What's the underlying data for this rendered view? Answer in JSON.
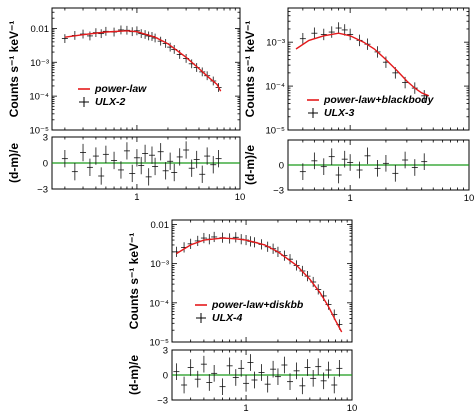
{
  "chart_data": [
    {
      "type": "scatter",
      "name_hint": "ulx2",
      "ylabel": "Counts s⁻¹ keV⁻¹",
      "resid_ylabel": "(d-m)/e",
      "xlim": [
        0.15,
        10
      ],
      "ylim": [
        1e-05,
        0.04
      ],
      "resid_ylim": [
        -3,
        3
      ],
      "xscale": "log",
      "yscale": "log",
      "x_ticks": [
        {
          "v": 1,
          "label": "1"
        },
        {
          "v": 10,
          "label": "10"
        }
      ],
      "y_ticks": [
        {
          "v": 0.01,
          "label": "0.01"
        },
        {
          "v": 0.001,
          "label": "10⁻³"
        },
        {
          "v": 0.0001,
          "label": "10⁻⁴"
        },
        {
          "v": 1e-05,
          "label": "10⁻⁵"
        }
      ],
      "resid_ticks": [
        {
          "v": 3,
          "label": "3"
        },
        {
          "v": 0,
          "label": "0"
        },
        {
          "v": -3,
          "label": "−3"
        }
      ],
      "legend": [
        {
          "label": "power-law",
          "style": "line",
          "color": "#e41a1c"
        },
        {
          "label": "ULX-2",
          "style": "cross",
          "color": "#000000"
        }
      ],
      "model": {
        "x": [
          0.2,
          0.3,
          0.5,
          0.8,
          1.0,
          1.5,
          2.0,
          3.0,
          4.0,
          5.0,
          6.0,
          6.5
        ],
        "y": [
          0.0055,
          0.0065,
          0.0078,
          0.0085,
          0.008,
          0.0055,
          0.0035,
          0.0014,
          0.00065,
          0.00035,
          0.00022,
          0.00014
        ]
      },
      "data": {
        "x": [
          0.2,
          0.25,
          0.3,
          0.35,
          0.4,
          0.45,
          0.5,
          0.6,
          0.7,
          0.8,
          0.9,
          1.0,
          1.1,
          1.2,
          1.3,
          1.4,
          1.5,
          1.7,
          1.9,
          2.1,
          2.3,
          2.6,
          3.0,
          3.4,
          3.8,
          4.3,
          4.8,
          5.5,
          6.2
        ],
        "y": [
          0.005,
          0.0062,
          0.0068,
          0.006,
          0.0075,
          0.007,
          0.0082,
          0.0078,
          0.009,
          0.0088,
          0.008,
          0.0085,
          0.007,
          0.0066,
          0.006,
          0.0058,
          0.0052,
          0.0042,
          0.0036,
          0.0028,
          0.0024,
          0.0017,
          0.0013,
          0.0009,
          0.0007,
          0.00052,
          0.0004,
          0.00028,
          0.00018
        ]
      },
      "resid": {
        "x": [
          0.2,
          0.25,
          0.3,
          0.35,
          0.4,
          0.45,
          0.5,
          0.6,
          0.7,
          0.8,
          0.9,
          1.0,
          1.1,
          1.2,
          1.3,
          1.4,
          1.5,
          1.7,
          1.9,
          2.1,
          2.3,
          2.6,
          3.0,
          3.4,
          3.8,
          4.3,
          4.8,
          5.5,
          6.2
        ],
        "y": [
          0.5,
          -1.0,
          1.2,
          -0.5,
          0.8,
          -1.5,
          1.0,
          0.3,
          -0.8,
          1.4,
          -1.2,
          0.6,
          -0.3,
          1.1,
          -1.6,
          0.9,
          -0.4,
          1.3,
          -0.9,
          0.2,
          -1.1,
          0.7,
          1.5,
          -0.6,
          0.4,
          -1.3,
          0.8,
          -0.2,
          0.5
        ]
      }
    },
    {
      "type": "scatter",
      "name_hint": "ulx3",
      "ylabel": "Counts s⁻¹ keV⁻¹",
      "resid_ylabel": "(d-m)/e",
      "xlim": [
        0.3,
        10
      ],
      "ylim": [
        1e-05,
        0.006
      ],
      "resid_ylim": [
        -3,
        3
      ],
      "xscale": "log",
      "yscale": "log",
      "x_ticks": [
        {
          "v": 1,
          "label": "1"
        },
        {
          "v": 10,
          "label": "10"
        }
      ],
      "y_ticks": [
        {
          "v": 0.001,
          "label": "10⁻³"
        },
        {
          "v": 0.0001,
          "label": "10⁻⁴"
        },
        {
          "v": 1e-05,
          "label": "10⁻⁵"
        }
      ],
      "resid_ticks": [
        {
          "v": 0,
          "label": "0"
        },
        {
          "v": -3,
          "label": "−3"
        }
      ],
      "legend": [
        {
          "label": "power-law+blackbody",
          "style": "line",
          "color": "#e41a1c"
        },
        {
          "label": "ULX-3",
          "style": "cross",
          "color": "#000000"
        }
      ],
      "model": {
        "x": [
          0.35,
          0.45,
          0.6,
          0.8,
          1.0,
          1.3,
          1.6,
          2.0,
          2.5,
          3.0,
          3.5,
          4.0,
          4.6
        ],
        "y": [
          0.0007,
          0.0011,
          0.0014,
          0.0016,
          0.0014,
          0.001,
          0.0007,
          0.0004,
          0.00022,
          0.00013,
          9e-05,
          7e-05,
          6e-05
        ]
      },
      "data": {
        "x": [
          0.4,
          0.5,
          0.6,
          0.7,
          0.8,
          0.9,
          1.0,
          1.2,
          1.4,
          1.7,
          2.0,
          2.4,
          2.9,
          3.5,
          4.2
        ],
        "y": [
          0.0012,
          0.0016,
          0.0015,
          0.0017,
          0.0021,
          0.0019,
          0.0015,
          0.0011,
          0.0009,
          0.0006,
          0.00035,
          0.0002,
          0.00012,
          9e-05,
          6e-05
        ]
      },
      "resid": {
        "x": [
          0.4,
          0.5,
          0.6,
          0.7,
          0.8,
          0.9,
          1.0,
          1.2,
          1.4,
          1.7,
          2.0,
          2.4,
          2.9,
          3.5,
          4.2
        ],
        "y": [
          -0.8,
          0.5,
          -0.2,
          1.0,
          -1.2,
          0.7,
          0.3,
          -0.6,
          1.1,
          -0.4,
          0.2,
          -1.0,
          0.6,
          -0.3,
          0.4
        ]
      }
    },
    {
      "type": "scatter",
      "name_hint": "ulx4",
      "ylabel": "Counts s⁻¹ keV⁻¹",
      "resid_ylabel": "(d-m)/e",
      "xlim": [
        0.2,
        10
      ],
      "ylim": [
        1e-05,
        0.013
      ],
      "resid_ylim": [
        -3,
        3
      ],
      "xscale": "log",
      "yscale": "log",
      "x_ticks": [
        {
          "v": 1,
          "label": "1"
        },
        {
          "v": 10,
          "label": "10"
        }
      ],
      "y_ticks": [
        {
          "v": 0.01,
          "label": "0.01"
        },
        {
          "v": 0.001,
          "label": "10⁻³"
        },
        {
          "v": 0.0001,
          "label": "10⁻⁴"
        },
        {
          "v": 1e-05,
          "label": "10⁻⁵"
        }
      ],
      "resid_ticks": [
        {
          "v": 3,
          "label": "3"
        },
        {
          "v": 0,
          "label": "0"
        },
        {
          "v": -3,
          "label": "−3"
        }
      ],
      "legend": [
        {
          "label": "power-law+diskbb",
          "style": "line",
          "color": "#e41a1c"
        },
        {
          "label": "ULX-4",
          "style": "cross",
          "color": "#000000"
        }
      ],
      "model": {
        "x": [
          0.22,
          0.3,
          0.4,
          0.6,
          0.8,
          1.0,
          1.5,
          2.0,
          3.0,
          4.0,
          5.0,
          6.0,
          7.0,
          8.0
        ],
        "y": [
          0.0018,
          0.003,
          0.004,
          0.0045,
          0.0043,
          0.004,
          0.003,
          0.002,
          0.0009,
          0.0004,
          0.00018,
          8e-05,
          3.5e-05,
          1.8e-05
        ]
      },
      "data": {
        "x": [
          0.22,
          0.26,
          0.3,
          0.35,
          0.4,
          0.45,
          0.5,
          0.6,
          0.7,
          0.8,
          0.9,
          1.0,
          1.1,
          1.2,
          1.4,
          1.6,
          1.8,
          2.0,
          2.3,
          2.6,
          3.0,
          3.4,
          3.8,
          4.3,
          4.8,
          5.4,
          6.0,
          6.8,
          7.6
        ],
        "y": [
          0.002,
          0.0026,
          0.0032,
          0.0038,
          0.0045,
          0.0042,
          0.0048,
          0.0046,
          0.0044,
          0.0047,
          0.0042,
          0.004,
          0.0037,
          0.0035,
          0.0031,
          0.0027,
          0.0024,
          0.002,
          0.0016,
          0.0013,
          0.0009,
          0.00065,
          0.00048,
          0.00034,
          0.00022,
          0.00015,
          9e-05,
          5e-05,
          2.8e-05
        ]
      },
      "resid": {
        "x": [
          0.22,
          0.26,
          0.3,
          0.35,
          0.4,
          0.45,
          0.5,
          0.6,
          0.7,
          0.8,
          0.9,
          1.0,
          1.1,
          1.2,
          1.4,
          1.6,
          1.8,
          2.0,
          2.3,
          2.6,
          3.0,
          3.4,
          3.8,
          4.3,
          4.8,
          5.4,
          6.0,
          6.8,
          7.6
        ],
        "y": [
          0.4,
          -1.2,
          0.9,
          -0.5,
          1.3,
          -0.9,
          0.2,
          -1.4,
          1.1,
          -0.3,
          0.8,
          -1.0,
          1.5,
          -0.6,
          0.3,
          -1.1,
          0.7,
          -0.2,
          1.2,
          -0.8,
          0.5,
          -1.3,
          0.9,
          -0.4,
          1.0,
          -0.7,
          0.6,
          -1.2,
          0.8
        ]
      }
    }
  ]
}
